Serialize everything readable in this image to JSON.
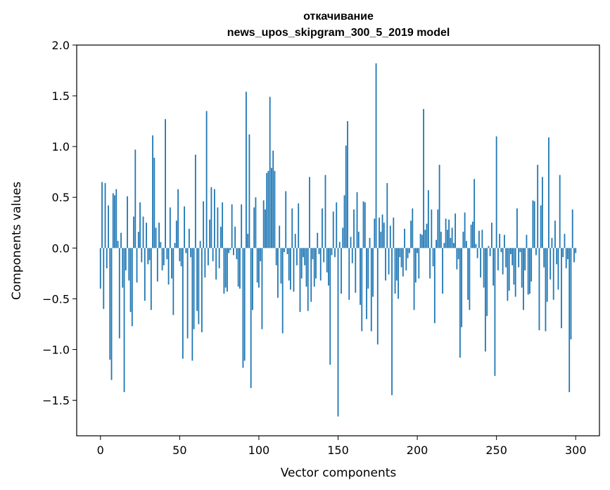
{
  "chart_data": {
    "type": "bar",
    "title": "откачивание",
    "subtitle": "news_upos_skipgram_300_5_2019 model",
    "xlabel": "Vector components",
    "ylabel": "Components values",
    "xlim": [
      -15,
      315
    ],
    "ylim": [
      -1.85,
      2.0
    ],
    "xticks": [
      0,
      50,
      100,
      150,
      200,
      250,
      300
    ],
    "xtick_labels": [
      "0",
      "50",
      "100",
      "150",
      "200",
      "250",
      "300"
    ],
    "yticks": [
      -1.5,
      -1.0,
      -0.5,
      0.0,
      0.5,
      1.0,
      1.5,
      2.0
    ],
    "ytick_labels": [
      "−1.5",
      "−1.0",
      "−0.5",
      "0.0",
      "0.5",
      "1.0",
      "1.5",
      "2.0"
    ],
    "bar_color": "#1f77b4",
    "grid": false,
    "values": [
      -0.4,
      0.65,
      -0.6,
      0.64,
      -0.2,
      0.42,
      -1.1,
      -1.3,
      0.54,
      0.52,
      0.58,
      0.07,
      -0.89,
      0.15,
      -0.39,
      -1.42,
      -0.22,
      0.51,
      -0.32,
      -0.63,
      -0.77,
      0.31,
      0.97,
      -0.34,
      0.16,
      0.45,
      -0.14,
      0.31,
      -0.52,
      0.25,
      -0.16,
      -0.12,
      -0.61,
      1.11,
      0.89,
      0.2,
      -0.33,
      0.25,
      0.06,
      -0.22,
      -0.17,
      1.27,
      -0.11,
      -0.36,
      0.4,
      -0.3,
      -0.66,
      0.05,
      0.27,
      0.58,
      -0.13,
      -0.18,
      -1.09,
      0.41,
      -0.05,
      -0.89,
      0.19,
      -0.09,
      -1.11,
      -0.8,
      0.92,
      -0.62,
      -0.75,
      0.07,
      -0.83,
      0.46,
      -0.29,
      1.35,
      -0.17,
      0.28,
      0.6,
      -0.13,
      0.58,
      -0.31,
      0.4,
      -0.2,
      0.21,
      0.45,
      -0.45,
      -0.39,
      -0.43,
      -0.05,
      -0.02,
      0.43,
      -0.07,
      0.21,
      -0.11,
      -0.38,
      -0.4,
      0.43,
      -1.18,
      -1.11,
      1.54,
      0.14,
      1.12,
      -1.38,
      -0.61,
      0.4,
      0.5,
      -0.34,
      -0.39,
      -0.13,
      -0.8,
      0.47,
      0.38,
      0.74,
      0.76,
      1.49,
      0.79,
      0.96,
      0.76,
      -0.17,
      -0.49,
      0.22,
      -0.35,
      -0.84,
      -0.04,
      0.56,
      -0.06,
      -0.32,
      -0.41,
      0.39,
      -0.43,
      0.14,
      -0.17,
      0.44,
      -0.63,
      -0.3,
      -0.09,
      -0.17,
      -0.38,
      -0.62,
      0.7,
      -0.53,
      -0.11,
      -0.38,
      -0.3,
      0.15,
      -0.06,
      -0.32,
      0.39,
      -0.14,
      0.72,
      -0.24,
      -0.37,
      -1.15,
      -0.07,
      0.36,
      -0.09,
      0.45,
      -1.66,
      0.06,
      -0.45,
      0.2,
      0.52,
      1.01,
      1.25,
      -0.51,
      0.11,
      -0.15,
      0.38,
      -0.44,
      0.55,
      0.16,
      -0.56,
      -0.82,
      0.46,
      0.45,
      -0.7,
      -0.4,
      0.1,
      -0.82,
      -0.48,
      0.29,
      1.82,
      -0.95,
      0.3,
      0.16,
      0.33,
      0.25,
      -0.32,
      0.64,
      -0.26,
      0.22,
      -1.45,
      0.3,
      -0.45,
      -0.32,
      -0.5,
      -0.09,
      -0.19,
      -0.28,
      0.19,
      -0.22,
      -0.1,
      -0.05,
      0.27,
      0.39,
      -0.61,
      -0.34,
      -0.05,
      -0.3,
      0.14,
      0.13,
      1.37,
      0.18,
      0.24,
      0.57,
      -0.3,
      0.38,
      -0.18,
      -0.74,
      0.08,
      0.38,
      0.82,
      0.16,
      -0.45,
      0.05,
      0.29,
      0.18,
      0.28,
      0.1,
      0.2,
      0.05,
      0.34,
      -0.21,
      -0.11,
      -1.08,
      -0.78,
      0.16,
      0.35,
      0.07,
      -0.51,
      -0.61,
      0.23,
      0.26,
      0.68,
      0.04,
      -0.1,
      0.17,
      -0.29,
      0.18,
      -0.39,
      -1.02,
      -0.67,
      0.02,
      -0.08,
      0.25,
      -0.37,
      -1.26,
      1.1,
      -0.22,
      0.14,
      -0.04,
      -0.26,
      0.13,
      -0.19,
      -0.52,
      -0.42,
      -0.06,
      -0.17,
      -0.36,
      -0.48,
      0.39,
      -0.19,
      -0.04,
      -0.39,
      -0.61,
      -0.22,
      0.13,
      -0.46,
      -0.45,
      -0.33,
      0.47,
      0.46,
      -0.07,
      0.82,
      -0.81,
      0.42,
      0.7,
      -0.19,
      -0.82,
      -0.53,
      1.09,
      -0.31,
      0.1,
      -0.51,
      0.27,
      -0.16,
      -0.41,
      0.72,
      -0.79,
      -0.09,
      0.14,
      -0.2,
      -0.11,
      -1.42,
      -0.9,
      0.38,
      -0.14,
      -0.05
    ]
  }
}
